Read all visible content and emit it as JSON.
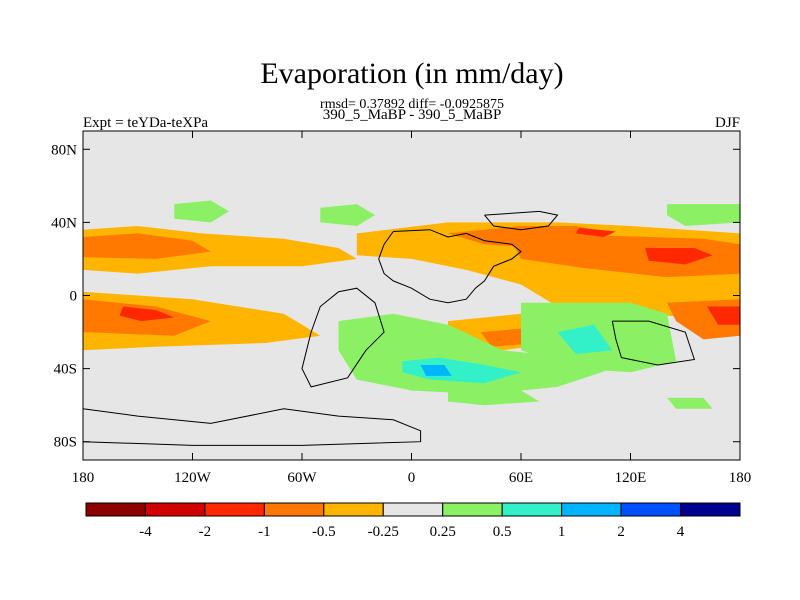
{
  "chart_data": {
    "type": "heatmap",
    "subtype": "filled-contour map",
    "title": "Evaporation (in mm/day)",
    "stats_line": "rmsd= 0.37892 diff= -0.0925875",
    "subtitle": "390_5_MaBP - 390_5_MaBP",
    "left_label": "Expt = teYDa-teXPa",
    "right_label": "DJF",
    "xlim": [
      -180,
      180
    ],
    "ylim": [
      -90,
      90
    ],
    "x_ticks": [
      {
        "value": -180,
        "label": "180"
      },
      {
        "value": -120,
        "label": "120W"
      },
      {
        "value": -60,
        "label": "60W"
      },
      {
        "value": 0,
        "label": "0"
      },
      {
        "value": 60,
        "label": "60E"
      },
      {
        "value": 120,
        "label": "120E"
      },
      {
        "value": 180,
        "label": "180"
      }
    ],
    "y_ticks": [
      {
        "value": 80,
        "label": "80N"
      },
      {
        "value": 40,
        "label": "40N"
      },
      {
        "value": 0,
        "label": "0"
      },
      {
        "value": -40,
        "label": "40S"
      },
      {
        "value": -80,
        "label": "80S"
      }
    ],
    "background_color": "#e6e6e6",
    "colorbar": {
      "levels": [
        "-4",
        "-2",
        "-1",
        "-0.5",
        "-0.25",
        "0.25",
        "0.5",
        "1",
        "2",
        "4"
      ],
      "colors": [
        "#8c0000",
        "#d00000",
        "#ff2800",
        "#ff7800",
        "#ffb400",
        "#e6e6e6",
        "#8cf064",
        "#32f0c8",
        "#00b4ff",
        "#0050ff",
        "#000090"
      ]
    },
    "regions": [
      {
        "color": "#ffb400",
        "points": [
          [
            -180,
            36
          ],
          [
            -150,
            38
          ],
          [
            -115,
            34
          ],
          [
            -70,
            31
          ],
          [
            -40,
            26
          ],
          [
            -30,
            20
          ],
          [
            -60,
            16
          ],
          [
            -110,
            16
          ],
          [
            -150,
            12
          ],
          [
            -180,
            14
          ]
        ]
      },
      {
        "color": "#ff7800",
        "points": [
          [
            -180,
            32
          ],
          [
            -150,
            34
          ],
          [
            -120,
            30
          ],
          [
            -110,
            24
          ],
          [
            -140,
            20
          ],
          [
            -180,
            21
          ]
        ]
      },
      {
        "color": "#ffb400",
        "points": [
          [
            -180,
            2
          ],
          [
            -120,
            -2
          ],
          [
            -70,
            -10
          ],
          [
            -50,
            -22
          ],
          [
            -80,
            -26
          ],
          [
            -140,
            -28
          ],
          [
            -180,
            -30
          ]
        ]
      },
      {
        "color": "#ff7800",
        "points": [
          [
            -180,
            -2
          ],
          [
            -140,
            -6
          ],
          [
            -110,
            -14
          ],
          [
            -130,
            -22
          ],
          [
            -180,
            -20
          ]
        ]
      },
      {
        "color": "#ff2800",
        "points": [
          [
            -158,
            -6
          ],
          [
            -140,
            -8
          ],
          [
            -130,
            -12
          ],
          [
            -148,
            -14
          ],
          [
            -160,
            -11
          ]
        ]
      },
      {
        "color": "#ffb400",
        "points": [
          [
            -30,
            34
          ],
          [
            20,
            40
          ],
          [
            80,
            40
          ],
          [
            120,
            38
          ],
          [
            180,
            34
          ],
          [
            180,
            -18
          ],
          [
            150,
            -12
          ],
          [
            110,
            -8
          ],
          [
            80,
            -6
          ],
          [
            60,
            6
          ],
          [
            30,
            14
          ],
          [
            0,
            20
          ],
          [
            -30,
            22
          ]
        ]
      },
      {
        "color": "#ff7800",
        "points": [
          [
            20,
            34
          ],
          [
            60,
            38
          ],
          [
            90,
            38
          ],
          [
            110,
            34
          ],
          [
            100,
            28
          ],
          [
            70,
            26
          ],
          [
            40,
            28
          ]
        ]
      },
      {
        "color": "#ff7800",
        "points": [
          [
            55,
            30
          ],
          [
            100,
            33
          ],
          [
            160,
            31
          ],
          [
            180,
            28
          ],
          [
            180,
            12
          ],
          [
            140,
            10
          ],
          [
            95,
            15
          ],
          [
            60,
            20
          ]
        ]
      },
      {
        "color": "#ff2800",
        "points": [
          [
            128,
            26
          ],
          [
            155,
            26
          ],
          [
            165,
            22
          ],
          [
            150,
            17
          ],
          [
            130,
            19
          ]
        ]
      },
      {
        "color": "#ff2800",
        "points": [
          [
            92,
            37
          ],
          [
            112,
            35
          ],
          [
            105,
            32
          ],
          [
            90,
            34
          ]
        ]
      },
      {
        "color": "#ff7800",
        "points": [
          [
            140,
            -4
          ],
          [
            180,
            -2
          ],
          [
            180,
            -22
          ],
          [
            160,
            -24
          ],
          [
            145,
            -14
          ]
        ]
      },
      {
        "color": "#ff2800",
        "points": [
          [
            162,
            -6
          ],
          [
            180,
            -6
          ],
          [
            180,
            -16
          ],
          [
            168,
            -16
          ]
        ]
      },
      {
        "color": "#ffb400",
        "points": [
          [
            20,
            -14
          ],
          [
            60,
            -10
          ],
          [
            80,
            -26
          ],
          [
            50,
            -30
          ],
          [
            20,
            -30
          ]
        ]
      },
      {
        "color": "#ff7800",
        "points": [
          [
            38,
            -20
          ],
          [
            62,
            -18
          ],
          [
            70,
            -26
          ],
          [
            44,
            -28
          ]
        ]
      },
      {
        "color": "#8cf064",
        "points": [
          [
            -130,
            50
          ],
          [
            -110,
            52
          ],
          [
            -100,
            46
          ],
          [
            -110,
            40
          ],
          [
            -130,
            42
          ]
        ]
      },
      {
        "color": "#8cf064",
        "points": [
          [
            -50,
            48
          ],
          [
            -30,
            50
          ],
          [
            -20,
            44
          ],
          [
            -30,
            38
          ],
          [
            -50,
            40
          ]
        ]
      },
      {
        "color": "#8cf064",
        "points": [
          [
            140,
            50
          ],
          [
            180,
            50
          ],
          [
            180,
            40
          ],
          [
            150,
            38
          ],
          [
            140,
            44
          ]
        ]
      },
      {
        "color": "#8cf064",
        "points": [
          [
            -40,
            -14
          ],
          [
            -10,
            -10
          ],
          [
            20,
            -16
          ],
          [
            50,
            -30
          ],
          [
            90,
            -34
          ],
          [
            110,
            -40
          ],
          [
            80,
            -50
          ],
          [
            40,
            -54
          ],
          [
            0,
            -52
          ],
          [
            -30,
            -46
          ],
          [
            -40,
            -30
          ]
        ]
      },
      {
        "color": "#32f0c8",
        "points": [
          [
            -5,
            -36
          ],
          [
            15,
            -34
          ],
          [
            40,
            -38
          ],
          [
            60,
            -42
          ],
          [
            40,
            -48
          ],
          [
            10,
            -46
          ],
          [
            -5,
            -42
          ]
        ]
      },
      {
        "color": "#00b4ff",
        "points": [
          [
            5,
            -38
          ],
          [
            18,
            -38
          ],
          [
            22,
            -44
          ],
          [
            8,
            -44
          ]
        ]
      },
      {
        "color": "#8cf064",
        "points": [
          [
            60,
            -4
          ],
          [
            120,
            -4
          ],
          [
            140,
            -10
          ],
          [
            145,
            -36
          ],
          [
            120,
            -42
          ],
          [
            90,
            -40
          ],
          [
            60,
            -30
          ]
        ]
      },
      {
        "color": "#32f0c8",
        "points": [
          [
            80,
            -20
          ],
          [
            100,
            -16
          ],
          [
            110,
            -30
          ],
          [
            90,
            -32
          ]
        ]
      },
      {
        "color": "#8cf064",
        "points": [
          [
            20,
            -52
          ],
          [
            60,
            -52
          ],
          [
            70,
            -58
          ],
          [
            40,
            -60
          ],
          [
            20,
            -58
          ]
        ]
      },
      {
        "color": "#8cf064",
        "points": [
          [
            140,
            -56
          ],
          [
            160,
            -56
          ],
          [
            165,
            -62
          ],
          [
            145,
            -62
          ]
        ]
      }
    ],
    "coastlines": [
      [
        [
          -10,
          35
        ],
        [
          10,
          36
        ],
        [
          20,
          32
        ],
        [
          30,
          34
        ],
        [
          40,
          30
        ],
        [
          55,
          28
        ],
        [
          60,
          24
        ],
        [
          55,
          20
        ],
        [
          45,
          16
        ],
        [
          40,
          8
        ],
        [
          35,
          4
        ],
        [
          30,
          -2
        ],
        [
          20,
          -4
        ],
        [
          10,
          -2
        ],
        [
          0,
          4
        ],
        [
          -10,
          8
        ],
        [
          -15,
          12
        ],
        [
          -18,
          20
        ],
        [
          -15,
          28
        ],
        [
          -10,
          35
        ]
      ],
      [
        [
          -40,
          2
        ],
        [
          -30,
          4
        ],
        [
          -20,
          -4
        ],
        [
          -15,
          -20
        ],
        [
          -25,
          -30
        ],
        [
          -35,
          -45
        ],
        [
          -55,
          -50
        ],
        [
          -60,
          -40
        ],
        [
          -55,
          -20
        ],
        [
          -50,
          -6
        ],
        [
          -40,
          2
        ]
      ],
      [
        [
          40,
          44
        ],
        [
          70,
          46
        ],
        [
          80,
          44
        ],
        [
          75,
          38
        ],
        [
          60,
          36
        ],
        [
          45,
          38
        ],
        [
          40,
          44
        ]
      ],
      [
        [
          110,
          -14
        ],
        [
          130,
          -14
        ],
        [
          150,
          -20
        ],
        [
          155,
          -35
        ],
        [
          135,
          -38
        ],
        [
          115,
          -34
        ],
        [
          112,
          -24
        ],
        [
          110,
          -14
        ]
      ],
      [
        [
          -180,
          -62
        ],
        [
          -150,
          -66
        ],
        [
          -110,
          -70
        ],
        [
          -70,
          -62
        ],
        [
          -40,
          -66
        ],
        [
          -10,
          -68
        ],
        [
          5,
          -74
        ],
        [
          5,
          -80
        ],
        [
          -60,
          -82
        ],
        [
          -120,
          -82
        ],
        [
          -180,
          -80
        ]
      ]
    ]
  }
}
